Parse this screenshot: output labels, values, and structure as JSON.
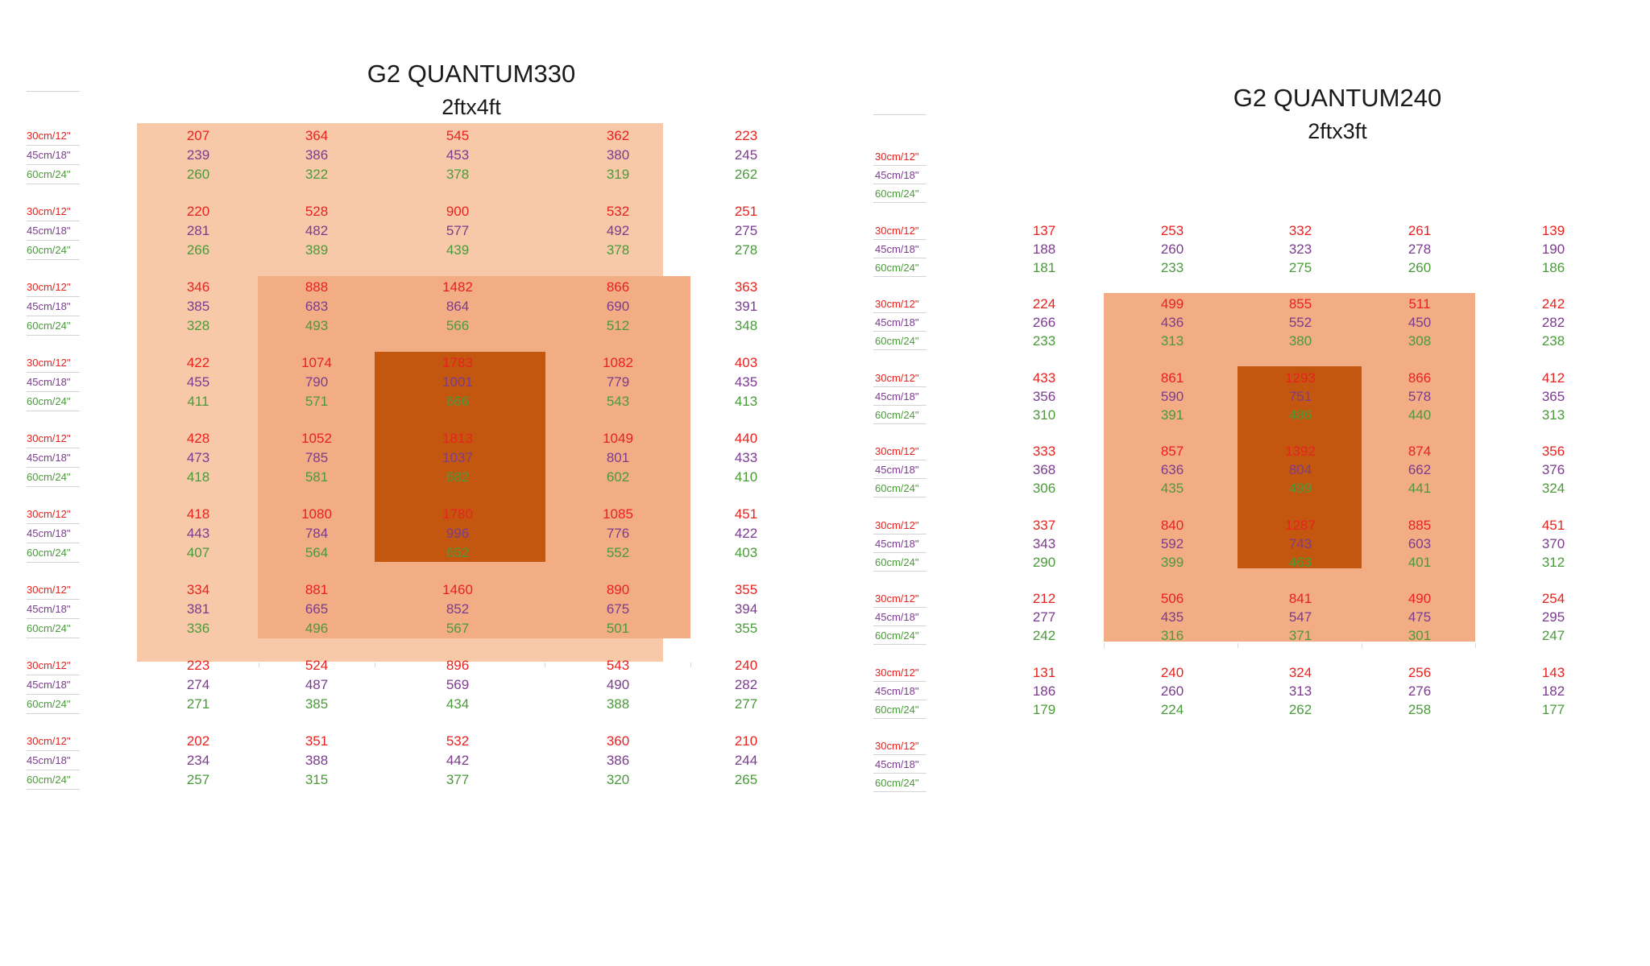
{
  "colors": {
    "h30": "#e8221f",
    "h45": "#7b3c8e",
    "h60": "#4a9a3a",
    "field": "#f7c9a9",
    "mid": "#f2ad84",
    "core": "#c4570f"
  },
  "heights": [
    "30cm/12\"",
    "45cm/18\"",
    "60cm/24\""
  ],
  "charts": [
    {
      "type": "table",
      "title": "G2 QUANTUM330",
      "subtitle": "2ftx4ft",
      "rows": [
        [
          [
            207,
            239,
            260
          ],
          [
            364,
            386,
            322
          ],
          [
            545,
            453,
            378
          ],
          [
            362,
            380,
            319
          ],
          [
            223,
            245,
            262
          ]
        ],
        [
          [
            220,
            281,
            266
          ],
          [
            528,
            482,
            389
          ],
          [
            900,
            577,
            439
          ],
          [
            532,
            492,
            378
          ],
          [
            251,
            275,
            278
          ]
        ],
        [
          [
            346,
            385,
            328
          ],
          [
            888,
            683,
            493
          ],
          [
            1482,
            864,
            566
          ],
          [
            866,
            690,
            512
          ],
          [
            363,
            391,
            348
          ]
        ],
        [
          [
            422,
            455,
            411
          ],
          [
            1074,
            790,
            571
          ],
          [
            1783,
            1001,
            666
          ],
          [
            1082,
            779,
            543
          ],
          [
            403,
            435,
            413
          ]
        ],
        [
          [
            428,
            473,
            418
          ],
          [
            1052,
            785,
            581
          ],
          [
            1813,
            1037,
            682
          ],
          [
            1049,
            801,
            602
          ],
          [
            440,
            433,
            410
          ]
        ],
        [
          [
            418,
            443,
            407
          ],
          [
            1080,
            784,
            564
          ],
          [
            1780,
            996,
            652
          ],
          [
            1085,
            776,
            552
          ],
          [
            451,
            422,
            403
          ]
        ],
        [
          [
            334,
            381,
            336
          ],
          [
            881,
            665,
            496
          ],
          [
            1460,
            852,
            567
          ],
          [
            890,
            675,
            501
          ],
          [
            355,
            394,
            355
          ]
        ],
        [
          [
            223,
            274,
            271
          ],
          [
            524,
            487,
            385
          ],
          [
            896,
            569,
            434
          ],
          [
            543,
            490,
            388
          ],
          [
            240,
            282,
            277
          ]
        ],
        [
          [
            202,
            234,
            257
          ],
          [
            351,
            388,
            315
          ],
          [
            532,
            442,
            377
          ],
          [
            360,
            386,
            320
          ],
          [
            210,
            244,
            265
          ]
        ]
      ]
    },
    {
      "type": "table",
      "title": "G2 QUANTUM240",
      "subtitle": "2ftx3ft",
      "rows": [
        null,
        [
          [
            137,
            188,
            181
          ],
          [
            253,
            260,
            233
          ],
          [
            332,
            323,
            275
          ],
          [
            261,
            278,
            260
          ],
          [
            139,
            190,
            186
          ]
        ],
        [
          [
            224,
            266,
            233
          ],
          [
            499,
            436,
            313
          ],
          [
            855,
            552,
            380
          ],
          [
            511,
            450,
            308
          ],
          [
            242,
            282,
            238
          ]
        ],
        [
          [
            433,
            356,
            310
          ],
          [
            861,
            590,
            391
          ],
          [
            1293,
            751,
            486
          ],
          [
            866,
            578,
            440
          ],
          [
            412,
            365,
            313
          ]
        ],
        [
          [
            333,
            368,
            306
          ],
          [
            857,
            636,
            435
          ],
          [
            1392,
            804,
            499
          ],
          [
            874,
            662,
            441
          ],
          [
            356,
            376,
            324
          ]
        ],
        [
          [
            337,
            343,
            290
          ],
          [
            840,
            592,
            399
          ],
          [
            1287,
            743,
            463
          ],
          [
            885,
            603,
            401
          ],
          [
            451,
            370,
            312
          ]
        ],
        [
          [
            212,
            277,
            242
          ],
          [
            506,
            435,
            316
          ],
          [
            841,
            547,
            371
          ],
          [
            490,
            475,
            301
          ],
          [
            254,
            295,
            247
          ]
        ],
        [
          [
            131,
            186,
            179
          ],
          [
            240,
            260,
            224
          ],
          [
            324,
            313,
            262
          ],
          [
            256,
            276,
            258
          ],
          [
            143,
            182,
            177
          ]
        ],
        null
      ]
    }
  ]
}
